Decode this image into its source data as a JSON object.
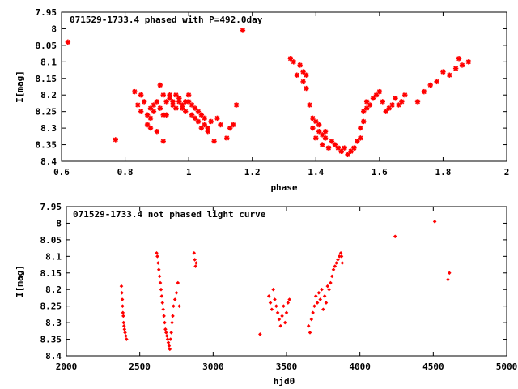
{
  "chart_data": [
    {
      "type": "scatter",
      "title": "071529-1733.4 phased with P=492.0day",
      "xlabel": "phase",
      "ylabel": "I[mag]",
      "xlim": [
        0.6,
        2.0
      ],
      "ylim": [
        7.95,
        8.4
      ],
      "y_inverted": true,
      "xticks": [
        "0.6",
        "0.8",
        "1",
        "1.2",
        "1.4",
        "1.6",
        "1.8",
        "2"
      ],
      "yticks": [
        "7.95",
        "8",
        "8.05",
        "8.1",
        "8.15",
        "8.2",
        "8.25",
        "8.3",
        "8.35",
        "8.4"
      ],
      "marker": "star",
      "color": "#ff0000",
      "series": [
        {
          "x": [
            0.62,
            0.77,
            0.83,
            0.84,
            0.85,
            0.85,
            0.86,
            0.87,
            0.87,
            0.88,
            0.88,
            0.88,
            0.89,
            0.89,
            0.9,
            0.9,
            0.91,
            0.91,
            0.92,
            0.92,
            0.92,
            0.93,
            0.93,
            0.94,
            0.94,
            0.95,
            0.95,
            0.96,
            0.96,
            0.97,
            0.97,
            0.98,
            0.98,
            0.99,
            0.99,
            1.0,
            1.0,
            1.01,
            1.01,
            1.02,
            1.02,
            1.03,
            1.03,
            1.04,
            1.04,
            1.05,
            1.05,
            1.06,
            1.06,
            1.07,
            1.08,
            1.09,
            1.1,
            1.12,
            1.13,
            1.14,
            1.15,
            1.17,
            1.32,
            1.33,
            1.34,
            1.35,
            1.36,
            1.36,
            1.37,
            1.37,
            1.38,
            1.39,
            1.39,
            1.4,
            1.4,
            1.41,
            1.41,
            1.42,
            1.42,
            1.43,
            1.43,
            1.44,
            1.45,
            1.46,
            1.47,
            1.48,
            1.49,
            1.5,
            1.51,
            1.52,
            1.53,
            1.54,
            1.54,
            1.55,
            1.55,
            1.56,
            1.56,
            1.57,
            1.58,
            1.59,
            1.6,
            1.61,
            1.62,
            1.63,
            1.64,
            1.65,
            1.66,
            1.67,
            1.68,
            1.72,
            1.74,
            1.76,
            1.78,
            1.8,
            1.82,
            1.84,
            1.85,
            1.86,
            1.88
          ],
          "y": [
            8.04,
            8.335,
            8.19,
            8.23,
            8.2,
            8.25,
            8.22,
            8.26,
            8.29,
            8.24,
            8.27,
            8.3,
            8.25,
            8.23,
            8.22,
            8.31,
            8.17,
            8.24,
            8.26,
            8.2,
            8.34,
            8.22,
            8.26,
            8.2,
            8.21,
            8.22,
            8.23,
            8.24,
            8.2,
            8.21,
            8.22,
            8.23,
            8.24,
            8.22,
            8.25,
            8.2,
            8.22,
            8.23,
            8.26,
            8.24,
            8.27,
            8.28,
            8.25,
            8.26,
            8.3,
            8.27,
            8.29,
            8.31,
            8.3,
            8.28,
            8.34,
            8.27,
            8.29,
            8.33,
            8.3,
            8.29,
            8.23,
            8.005,
            8.09,
            8.1,
            8.14,
            8.11,
            8.13,
            8.16,
            8.14,
            8.18,
            8.23,
            8.27,
            8.3,
            8.28,
            8.33,
            8.31,
            8.29,
            8.32,
            8.35,
            8.33,
            8.31,
            8.36,
            8.34,
            8.35,
            8.36,
            8.37,
            8.36,
            8.38,
            8.37,
            8.36,
            8.34,
            8.33,
            8.3,
            8.28,
            8.25,
            8.22,
            8.24,
            8.23,
            8.21,
            8.2,
            8.19,
            8.22,
            8.25,
            8.24,
            8.23,
            8.21,
            8.23,
            8.22,
            8.2,
            8.22,
            8.19,
            8.17,
            8.16,
            8.13,
            8.14,
            8.12,
            8.09,
            8.11,
            8.1
          ]
        }
      ]
    },
    {
      "type": "scatter",
      "title": "071529-1733.4 not phased light curve",
      "xlabel": "hjd0",
      "ylabel": "I[mag]",
      "xlim": [
        2000,
        5000
      ],
      "ylim": [
        7.95,
        8.4
      ],
      "y_inverted": true,
      "xticks": [
        "2000",
        "2500",
        "3000",
        "3500",
        "4000",
        "4500",
        "5000"
      ],
      "yticks": [
        "7.95",
        "8",
        "8.05",
        "8.1",
        "8.15",
        "8.2",
        "8.25",
        "8.3",
        "8.35",
        "8.4"
      ],
      "marker": "diamond",
      "color": "#ff0000",
      "series": [
        {
          "x": [
            2375,
            2378,
            2381,
            2383,
            2385,
            2388,
            2390,
            2393,
            2396,
            2400,
            2405,
            2410,
            2615,
            2620,
            2625,
            2630,
            2635,
            2640,
            2645,
            2650,
            2655,
            2660,
            2665,
            2670,
            2675,
            2680,
            2685,
            2690,
            2695,
            2700,
            2705,
            2710,
            2715,
            2720,
            2725,
            2730,
            2740,
            2750,
            2760,
            2770,
            2870,
            2875,
            2880,
            2885,
            3320,
            3380,
            3390,
            3400,
            3410,
            3420,
            3430,
            3440,
            3450,
            3460,
            3470,
            3480,
            3490,
            3500,
            3510,
            3520,
            3650,
            3660,
            3670,
            3680,
            3690,
            3700,
            3710,
            3720,
            3730,
            3740,
            3750,
            3760,
            3770,
            3780,
            3790,
            3800,
            3810,
            3820,
            3830,
            3840,
            3850,
            3860,
            3870,
            3875,
            3880,
            4240,
            4510,
            4600,
            4610
          ],
          "y": [
            8.19,
            8.21,
            8.23,
            8.25,
            8.27,
            8.28,
            8.3,
            8.31,
            8.32,
            8.33,
            8.34,
            8.35,
            8.09,
            8.1,
            8.12,
            8.14,
            8.16,
            8.18,
            8.2,
            8.22,
            8.24,
            8.26,
            8.28,
            8.3,
            8.32,
            8.33,
            8.34,
            8.35,
            8.36,
            8.37,
            8.38,
            8.35,
            8.33,
            8.3,
            8.28,
            8.25,
            8.23,
            8.21,
            8.18,
            8.25,
            8.09,
            8.11,
            8.13,
            8.12,
            8.335,
            8.22,
            8.24,
            8.26,
            8.2,
            8.23,
            8.25,
            8.27,
            8.29,
            8.31,
            8.28,
            8.25,
            8.3,
            8.27,
            8.24,
            8.23,
            8.31,
            8.33,
            8.29,
            8.27,
            8.25,
            8.22,
            8.24,
            8.21,
            8.23,
            8.2,
            8.26,
            8.22,
            8.24,
            8.19,
            8.2,
            8.18,
            8.16,
            8.14,
            8.13,
            8.12,
            8.11,
            8.1,
            8.09,
            8.1,
            8.12,
            8.04,
            7.995,
            8.17,
            8.15
          ]
        }
      ]
    }
  ]
}
